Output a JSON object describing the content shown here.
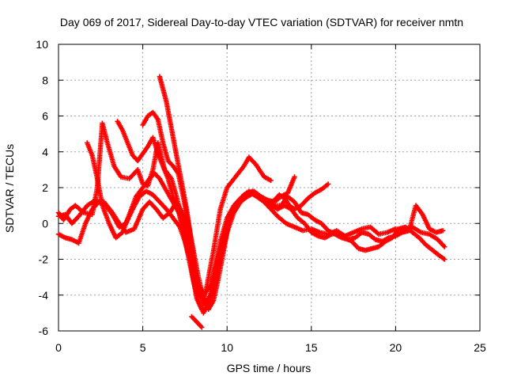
{
  "chart_data": {
    "type": "scatter",
    "title": "Day 069 of 2017, Sidereal Day-to-day VTEC variation (SDTVAR) for receiver nmtn",
    "xlabel": "GPS time / hours",
    "ylabel": "SDTVAR / TECUs",
    "xlim": [
      0,
      25
    ],
    "ylim": [
      -6,
      10
    ],
    "xticks": [
      "0",
      "5",
      "10",
      "15",
      "20",
      "25"
    ],
    "yticks": [
      "-6",
      "-4",
      "-2",
      "0",
      "2",
      "4",
      "6",
      "8",
      "10"
    ],
    "grid": true,
    "marker": "+",
    "color": "#ff0000",
    "series": [
      {
        "x": [
          0.0,
          0.3,
          0.7,
          1.0,
          1.5,
          2.0,
          2.3,
          2.6,
          2.9,
          3.3,
          3.7,
          4.2,
          4.7,
          5.0,
          5.3,
          5.6,
          5.9,
          6.3,
          6.7,
          7.0,
          7.4,
          7.8,
          8.2,
          8.5,
          8.8,
          9.2,
          9.6,
          10.0,
          10.5,
          11.0,
          11.3,
          11.7,
          12.2,
          12.6
        ],
        "y": [
          0.6,
          0.2,
          0.8,
          1.0,
          0.6,
          0.5,
          2.0,
          5.6,
          4.5,
          3.2,
          2.6,
          2.5,
          3.0,
          2.2,
          2.1,
          3.0,
          4.5,
          3.0,
          2.5,
          1.5,
          0.0,
          -2.0,
          -4.2,
          -4.8,
          -3.5,
          -1.5,
          0.8,
          2.0,
          2.6,
          3.2,
          3.7,
          3.3,
          2.6,
          2.4
        ]
      },
      {
        "x": [
          0.0,
          0.4,
          0.8,
          1.2,
          1.7,
          2.2,
          2.7,
          3.2,
          3.6,
          4.0,
          4.5,
          5.0,
          5.4,
          5.8,
          6.2,
          6.6,
          7.0,
          7.4,
          7.8,
          8.2,
          8.6,
          9.0,
          9.5,
          10.0,
          10.5,
          11.0,
          11.5,
          12.0,
          12.5,
          13.0,
          13.5,
          14.0,
          14.5,
          15.0,
          15.5,
          16.0,
          16.5,
          17.0,
          17.5,
          18.0,
          18.5,
          19.0,
          19.5,
          20.0,
          20.5,
          21.0,
          21.5,
          22.0,
          22.5,
          22.9
        ],
        "y": [
          0.4,
          0.5,
          0.0,
          0.4,
          1.0,
          1.3,
          1.2,
          0.6,
          0.0,
          -0.5,
          -0.3,
          0.8,
          1.2,
          0.8,
          0.3,
          0.6,
          1.2,
          0.5,
          -1.2,
          -3.2,
          -4.0,
          -3.5,
          -1.8,
          0.0,
          1.0,
          1.6,
          1.8,
          1.4,
          0.9,
          0.4,
          0.0,
          -0.2,
          -0.4,
          -0.3,
          -0.5,
          -0.6,
          -0.4,
          -0.7,
          -0.5,
          -0.3,
          -0.2,
          -0.6,
          -0.5,
          -0.3,
          -0.4,
          -0.2,
          -0.5,
          -0.6,
          -0.9,
          -1.3
        ]
      },
      {
        "x": [
          0.0,
          0.4,
          0.8,
          1.2,
          1.6,
          2.0,
          2.4,
          2.8,
          3.2,
          3.6,
          4.0,
          4.4,
          4.8,
          5.2,
          5.6,
          6.0,
          6.4,
          6.8,
          7.2,
          7.5,
          7.8,
          8.1,
          8.4,
          8.7,
          9.0,
          9.4,
          9.8,
          10.2,
          10.6,
          11.0,
          11.4,
          11.8,
          12.2,
          12.6,
          13.0,
          13.4,
          13.8,
          14.2,
          14.6,
          15.0,
          15.4,
          15.8,
          16.2,
          16.6,
          17.0,
          17.4,
          17.8,
          18.2,
          18.6,
          19.0,
          19.4,
          19.8,
          20.2,
          20.6,
          21.0,
          21.4,
          21.8,
          22.2,
          22.6,
          22.9
        ],
        "y": [
          -0.6,
          -0.8,
          -0.9,
          -1.1,
          0.0,
          0.8,
          1.2,
          1.0,
          0.5,
          -0.2,
          0.0,
          0.8,
          1.5,
          1.8,
          1.6,
          1.2,
          0.8,
          0.3,
          -0.2,
          -1.0,
          -2.0,
          -3.0,
          -3.8,
          -4.6,
          -4.2,
          -3.0,
          -1.2,
          0.5,
          1.2,
          1.5,
          1.7,
          1.5,
          1.3,
          1.0,
          0.8,
          1.0,
          0.8,
          0.3,
          0.0,
          -0.5,
          -0.7,
          -0.8,
          -0.6,
          -0.5,
          -0.8,
          -1.0,
          -1.4,
          -1.5,
          -1.4,
          -1.3,
          -1.0,
          -0.8,
          -0.3,
          -0.2,
          -0.5,
          -0.8,
          -1.2,
          -1.5,
          -1.8,
          -2.0
        ]
      },
      {
        "x": [
          1.7,
          2.0,
          2.3,
          2.6,
          3.0,
          3.4,
          3.8,
          4.2,
          4.6,
          5.0,
          5.4,
          5.7,
          6.0,
          6.3,
          6.6,
          6.9,
          7.2,
          7.5,
          7.8,
          8.1,
          8.4,
          8.7,
          9.0,
          9.3,
          9.6,
          10.0,
          10.4,
          10.8,
          11.2,
          11.6,
          12.0,
          12.4,
          12.8,
          13.2,
          13.6,
          14.0
        ],
        "y": [
          4.5,
          3.8,
          2.5,
          1.0,
          0.0,
          -0.8,
          -0.5,
          0.5,
          1.5,
          2.0,
          2.5,
          2.8,
          2.5,
          2.0,
          1.5,
          1.0,
          0.5,
          -0.5,
          -1.5,
          -2.8,
          -4.0,
          -4.5,
          -4.0,
          -2.5,
          -1.0,
          0.3,
          1.0,
          1.4,
          1.6,
          1.8,
          1.5,
          1.3,
          1.2,
          1.5,
          1.7,
          2.6
        ]
      },
      {
        "x": [
          3.5,
          3.8,
          4.1,
          4.4,
          4.7,
          5.0,
          5.3,
          5.6,
          5.9,
          6.2,
          6.5,
          6.8,
          7.1,
          7.4,
          7.7,
          8.0,
          8.3,
          8.6,
          8.9,
          9.2,
          9.6,
          10.0,
          10.4,
          10.8,
          11.2,
          11.6,
          12.0,
          12.4,
          12.8,
          13.2,
          13.6,
          14.0,
          14.4,
          14.8,
          15.2,
          15.6,
          16.0,
          16.4,
          16.8,
          17.2,
          17.6,
          18.0,
          18.4,
          18.8,
          19.2,
          19.6,
          20.0,
          20.4,
          20.8,
          21.2,
          21.6,
          22.0,
          22.4,
          22.8
        ],
        "y": [
          5.7,
          5.2,
          4.5,
          3.8,
          3.5,
          3.9,
          4.3,
          4.8,
          3.9,
          3.2,
          2.5,
          1.5,
          0.8,
          -0.5,
          -1.8,
          -3.2,
          -4.3,
          -5.0,
          -4.5,
          -3.5,
          -2.0,
          -0.5,
          0.6,
          1.2,
          1.5,
          1.7,
          1.5,
          1.3,
          1.0,
          1.0,
          1.5,
          1.2,
          0.6,
          0.5,
          0.2,
          0.0,
          -0.4,
          -0.6,
          -0.8,
          -0.9,
          -0.8,
          -0.5,
          -0.6,
          -0.9,
          -1.0,
          -0.8,
          -0.7,
          -0.5,
          -0.4,
          1.0,
          0.5,
          -0.3,
          -0.5,
          -0.4
        ]
      },
      {
        "x": [
          5.0,
          5.3,
          5.6,
          5.9,
          6.2,
          6.5,
          6.8,
          7.1,
          7.4,
          7.7,
          8.0,
          8.3,
          8.6,
          8.9,
          9.2,
          9.5,
          9.8,
          10.1,
          10.4,
          10.7,
          11.0,
          11.3,
          11.6,
          11.9,
          12.2,
          12.5,
          12.8,
          13.1,
          13.4,
          13.7,
          14.0,
          14.4,
          14.8,
          15.2,
          15.6,
          16.0
        ],
        "y": [
          5.5,
          6.0,
          6.2,
          5.8,
          4.5,
          3.5,
          3.2,
          2.8,
          1.5,
          0.0,
          -1.5,
          -3.0,
          -4.2,
          -4.8,
          -4.3,
          -3.0,
          -1.5,
          0.0,
          0.8,
          1.3,
          1.6,
          1.8,
          1.6,
          1.4,
          1.2,
          1.1,
          1.3,
          1.6,
          1.4,
          1.0,
          0.8,
          1.0,
          1.4,
          1.7,
          1.9,
          2.2
        ]
      },
      {
        "x": [
          6.0,
          6.2,
          6.4,
          6.6,
          6.8,
          7.0,
          7.2,
          7.4,
          7.6,
          7.8,
          8.0,
          8.2,
          8.4
        ],
        "y": [
          8.2,
          7.5,
          6.8,
          5.8,
          4.8,
          3.8,
          2.8,
          1.8,
          0.8,
          -0.5,
          -1.8,
          -3.0,
          -3.8
        ]
      },
      {
        "x": [
          7.9,
          8.1,
          8.3,
          8.5
        ],
        "y": [
          -5.2,
          -5.4,
          -5.6,
          -5.8
        ]
      }
    ]
  }
}
